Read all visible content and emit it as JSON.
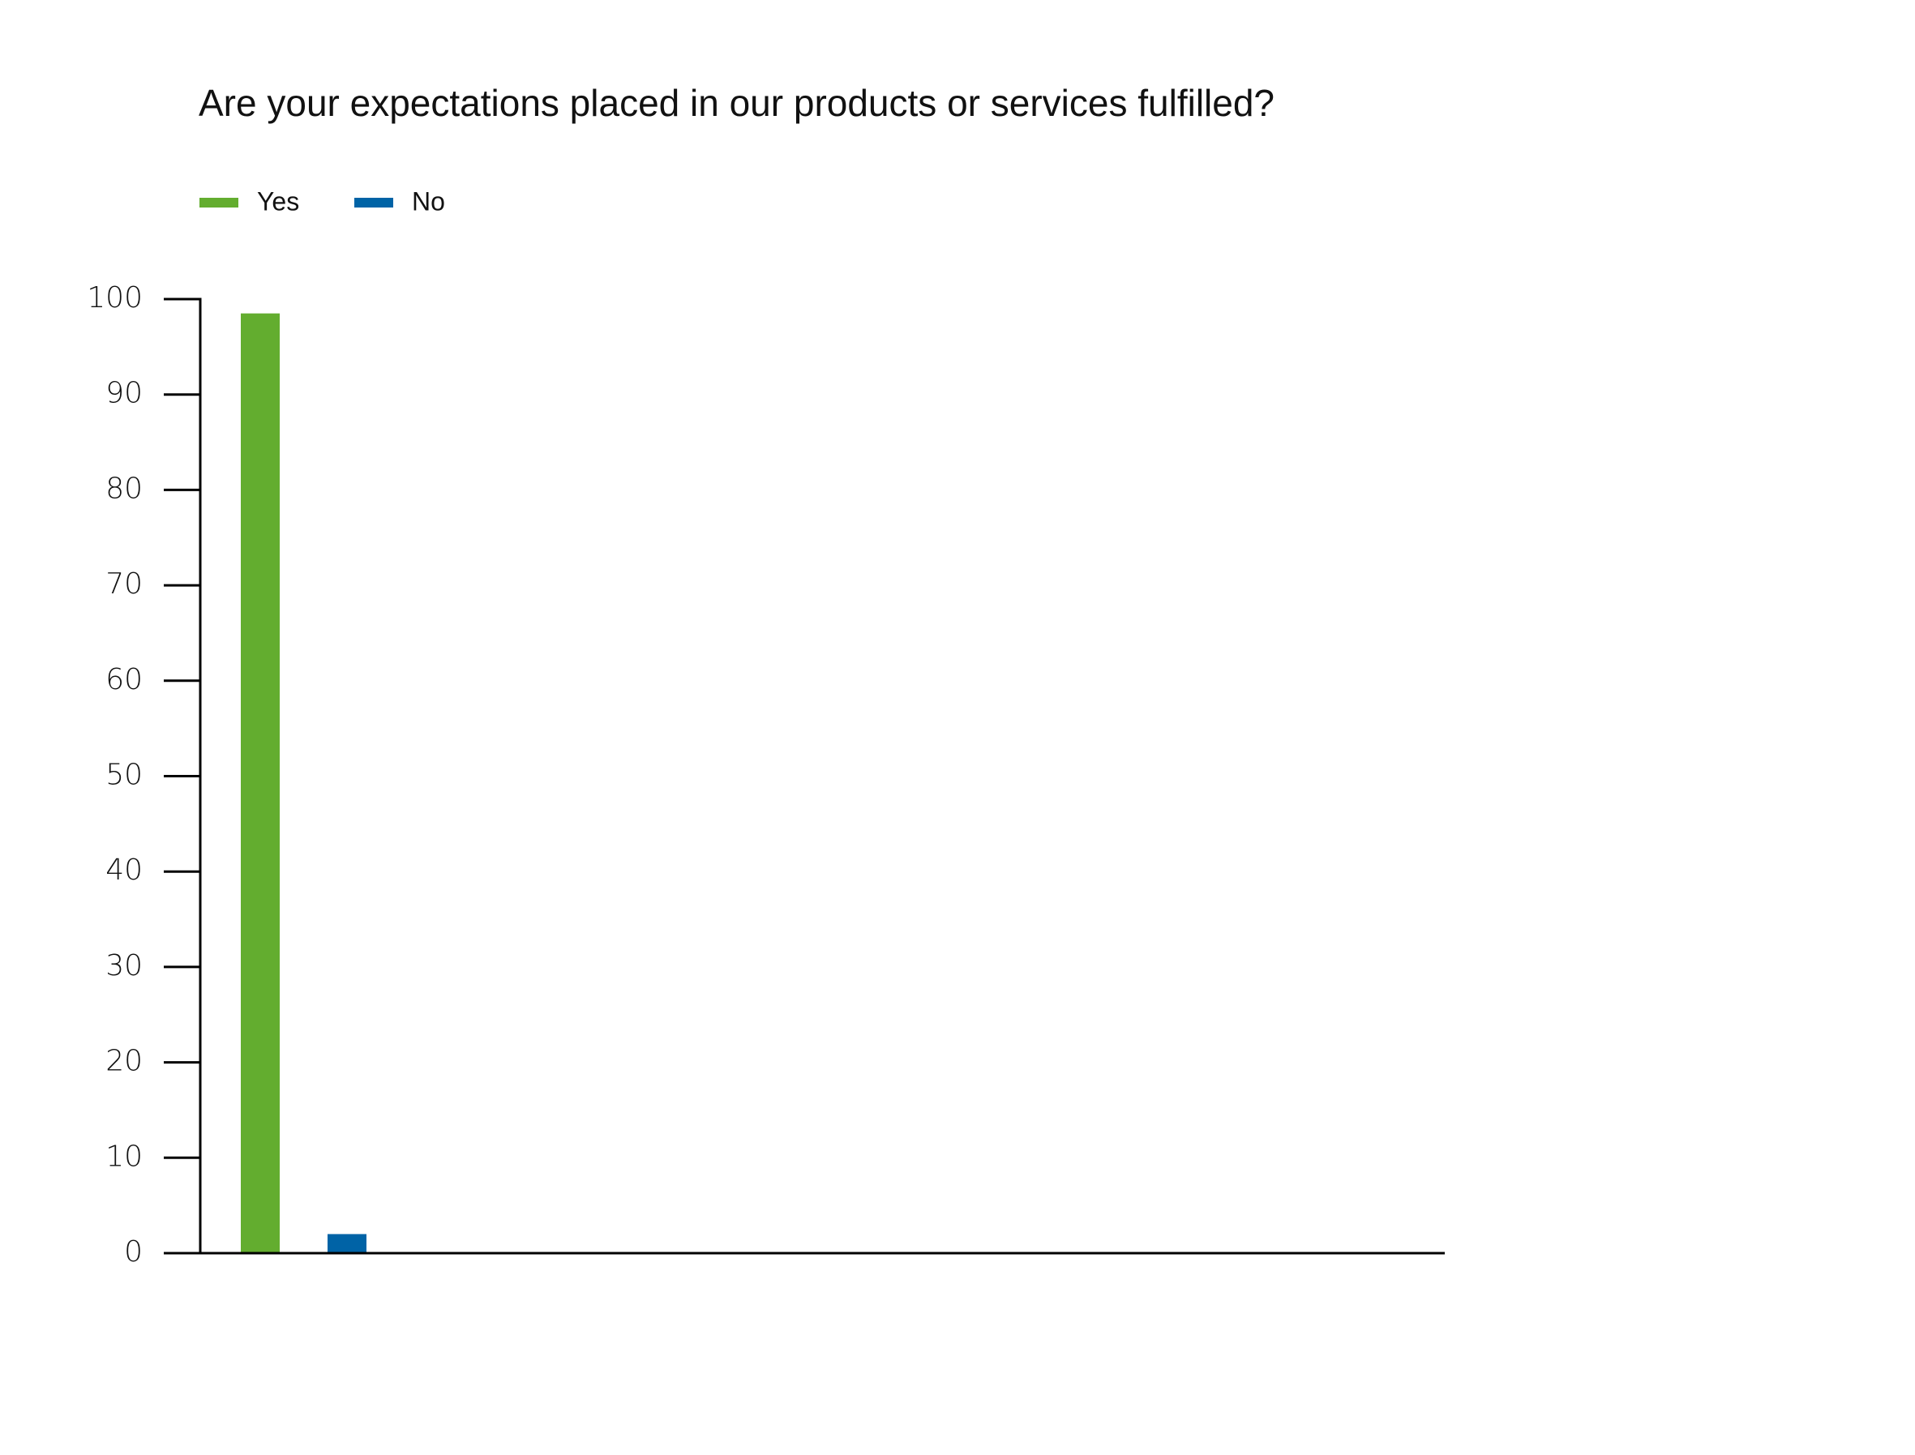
{
  "chart_data": {
    "type": "bar",
    "title": "Are your expectations placed in our products or services fulfilled?",
    "categories": [
      null
    ],
    "series": [
      {
        "name": "Yes",
        "color": "#63ad2f",
        "values": [
          98.5
        ]
      },
      {
        "name": "No",
        "color": "#0063a6",
        "values": [
          2
        ]
      }
    ],
    "ylim": [
      0,
      100
    ],
    "yticks": [
      0,
      10,
      20,
      30,
      40,
      50,
      60,
      70,
      80,
      90,
      100
    ],
    "grid": false,
    "legend": "top-left"
  }
}
